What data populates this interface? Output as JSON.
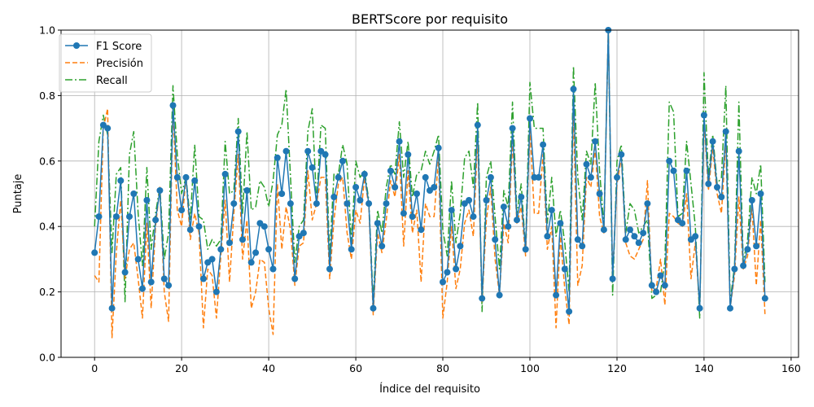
{
  "chart_data": {
    "type": "line",
    "title": "BERTScore por requisito",
    "xlabel": "Índice del requisito",
    "ylabel": "Puntaje",
    "xlim": [
      -7.7,
      161.7
    ],
    "ylim": [
      0.0,
      1.0
    ],
    "xticks": [
      0,
      20,
      40,
      60,
      80,
      100,
      120,
      140,
      160
    ],
    "yticks": [
      0.0,
      0.2,
      0.4,
      0.6,
      0.8,
      1.0
    ],
    "xtick_labels": [
      "0",
      "20",
      "40",
      "60",
      "80",
      "100",
      "120",
      "140",
      "160"
    ],
    "ytick_labels": [
      "0.0",
      "0.2",
      "0.4",
      "0.6",
      "0.8",
      "1.0"
    ],
    "grid": true,
    "legend_position": "top-left",
    "x": [
      0,
      1,
      2,
      3,
      4,
      5,
      6,
      7,
      8,
      9,
      10,
      11,
      12,
      13,
      14,
      15,
      16,
      17,
      18,
      19,
      20,
      21,
      22,
      23,
      24,
      25,
      26,
      27,
      28,
      29,
      30,
      31,
      32,
      33,
      34,
      35,
      36,
      37,
      38,
      39,
      40,
      41,
      42,
      43,
      44,
      45,
      46,
      47,
      48,
      49,
      50,
      51,
      52,
      53,
      54,
      55,
      56,
      57,
      58,
      59,
      60,
      61,
      62,
      63,
      64,
      65,
      66,
      67,
      68,
      69,
      70,
      71,
      72,
      73,
      74,
      75,
      76,
      77,
      78,
      79,
      80,
      81,
      82,
      83,
      84,
      85,
      86,
      87,
      88,
      89,
      90,
      91,
      92,
      93,
      94,
      95,
      96,
      97,
      98,
      99,
      100,
      101,
      102,
      103,
      104,
      105,
      106,
      107,
      108,
      109,
      110,
      111,
      112,
      113,
      114,
      115,
      116,
      117,
      118,
      119,
      120,
      121,
      122,
      123,
      124,
      125,
      126,
      127,
      128,
      129,
      130,
      131,
      132,
      133,
      134,
      135,
      136,
      137,
      138,
      139,
      140,
      141,
      142,
      143,
      144,
      145,
      146,
      147,
      148,
      149,
      150,
      151,
      152,
      153,
      154
    ],
    "series": [
      {
        "name": "F1 Score",
        "color": "#1f77b4",
        "style": "solid",
        "marker": "circle",
        "values": [
          0.32,
          0.43,
          0.71,
          0.7,
          0.15,
          0.43,
          0.54,
          0.26,
          0.43,
          0.5,
          0.3,
          0.21,
          0.48,
          0.23,
          0.42,
          0.51,
          0.24,
          0.22,
          0.77,
          0.55,
          0.45,
          0.55,
          0.39,
          0.54,
          0.4,
          0.24,
          0.29,
          0.3,
          0.2,
          0.33,
          0.56,
          0.35,
          0.47,
          0.69,
          0.36,
          0.51,
          0.29,
          0.32,
          0.41,
          0.4,
          0.33,
          0.27,
          0.61,
          0.5,
          0.63,
          0.47,
          0.24,
          0.37,
          0.38,
          0.63,
          0.58,
          0.47,
          0.63,
          0.62,
          0.27,
          0.49,
          0.55,
          0.6,
          0.47,
          0.33,
          0.52,
          0.48,
          0.56,
          0.47,
          0.15,
          0.41,
          0.34,
          0.47,
          0.57,
          0.52,
          0.66,
          0.44,
          0.62,
          0.43,
          0.5,
          0.39,
          0.55,
          0.51,
          0.52,
          0.64,
          0.23,
          0.26,
          0.45,
          0.27,
          0.34,
          0.47,
          0.48,
          0.43,
          0.71,
          0.18,
          0.48,
          0.55,
          0.36,
          0.19,
          0.46,
          0.4,
          0.7,
          0.42,
          0.49,
          0.33,
          0.73,
          0.55,
          0.55,
          0.65,
          0.37,
          0.45,
          0.19,
          0.41,
          0.27,
          0.14,
          0.82,
          0.36,
          0.34,
          0.59,
          0.55,
          0.66,
          0.5,
          0.39,
          1.0,
          0.24,
          0.55,
          0.62,
          0.36,
          0.39,
          0.37,
          0.35,
          0.38,
          0.47,
          0.22,
          0.2,
          0.25,
          0.22,
          0.6,
          0.57,
          0.42,
          0.41,
          0.57,
          0.36,
          0.37,
          0.15,
          0.74,
          0.53,
          0.66,
          0.52,
          0.49,
          0.69,
          0.15,
          0.27,
          0.63,
          0.28,
          0.33,
          0.48,
          0.34,
          0.5,
          0.18
        ]
      },
      {
        "name": "Precisión",
        "color": "#ff7f0e",
        "style": "dashed",
        "marker": "none",
        "values": [
          0.25,
          0.23,
          0.7,
          0.76,
          0.06,
          0.32,
          0.48,
          0.24,
          0.33,
          0.35,
          0.24,
          0.12,
          0.41,
          0.15,
          0.4,
          0.52,
          0.2,
          0.11,
          0.76,
          0.45,
          0.4,
          0.55,
          0.36,
          0.44,
          0.38,
          0.09,
          0.27,
          0.25,
          0.12,
          0.31,
          0.48,
          0.23,
          0.44,
          0.62,
          0.3,
          0.42,
          0.15,
          0.2,
          0.3,
          0.29,
          0.15,
          0.07,
          0.53,
          0.33,
          0.46,
          0.39,
          0.22,
          0.34,
          0.35,
          0.57,
          0.42,
          0.47,
          0.55,
          0.55,
          0.24,
          0.42,
          0.53,
          0.55,
          0.38,
          0.3,
          0.45,
          0.41,
          0.55,
          0.46,
          0.13,
          0.38,
          0.32,
          0.42,
          0.54,
          0.49,
          0.62,
          0.34,
          0.57,
          0.38,
          0.45,
          0.23,
          0.47,
          0.43,
          0.43,
          0.61,
          0.12,
          0.23,
          0.4,
          0.21,
          0.27,
          0.41,
          0.45,
          0.37,
          0.67,
          0.17,
          0.42,
          0.52,
          0.3,
          0.19,
          0.41,
          0.35,
          0.66,
          0.41,
          0.46,
          0.31,
          0.7,
          0.44,
          0.44,
          0.62,
          0.33,
          0.4,
          0.09,
          0.37,
          0.21,
          0.1,
          0.75,
          0.22,
          0.28,
          0.55,
          0.52,
          0.64,
          0.43,
          0.38,
          1.0,
          0.25,
          0.53,
          0.61,
          0.35,
          0.31,
          0.3,
          0.33,
          0.36,
          0.54,
          0.2,
          0.21,
          0.3,
          0.16,
          0.44,
          0.43,
          0.41,
          0.4,
          0.5,
          0.24,
          0.35,
          0.15,
          0.72,
          0.51,
          0.64,
          0.5,
          0.44,
          0.66,
          0.15,
          0.25,
          0.49,
          0.27,
          0.31,
          0.46,
          0.22,
          0.42,
          0.13
        ]
      },
      {
        "name": "Recall",
        "color": "#2ca02c",
        "style": "dashdot",
        "marker": "none",
        "values": [
          0.4,
          0.66,
          0.74,
          0.68,
          0.32,
          0.56,
          0.58,
          0.17,
          0.62,
          0.69,
          0.44,
          0.28,
          0.58,
          0.33,
          0.44,
          0.52,
          0.3,
          0.38,
          0.83,
          0.62,
          0.5,
          0.55,
          0.42,
          0.65,
          0.43,
          0.42,
          0.33,
          0.36,
          0.34,
          0.36,
          0.66,
          0.5,
          0.51,
          0.73,
          0.44,
          0.69,
          0.45,
          0.46,
          0.54,
          0.52,
          0.46,
          0.54,
          0.68,
          0.71,
          0.82,
          0.55,
          0.29,
          0.4,
          0.42,
          0.69,
          0.76,
          0.47,
          0.71,
          0.7,
          0.31,
          0.56,
          0.56,
          0.65,
          0.59,
          0.35,
          0.6,
          0.55,
          0.57,
          0.48,
          0.17,
          0.45,
          0.38,
          0.52,
          0.59,
          0.56,
          0.72,
          0.55,
          0.66,
          0.49,
          0.56,
          0.57,
          0.63,
          0.59,
          0.63,
          0.68,
          0.39,
          0.31,
          0.54,
          0.35,
          0.44,
          0.61,
          0.63,
          0.52,
          0.78,
          0.14,
          0.55,
          0.6,
          0.43,
          0.27,
          0.51,
          0.46,
          0.78,
          0.44,
          0.53,
          0.33,
          0.84,
          0.7,
          0.7,
          0.7,
          0.41,
          0.55,
          0.37,
          0.45,
          0.35,
          0.2,
          0.89,
          0.55,
          0.42,
          0.63,
          0.59,
          0.84,
          0.57,
          0.4,
          1.0,
          0.19,
          0.6,
          0.65,
          0.38,
          0.47,
          0.45,
          0.38,
          0.4,
          0.42,
          0.18,
          0.19,
          0.2,
          0.29,
          0.78,
          0.75,
          0.43,
          0.44,
          0.66,
          0.53,
          0.4,
          0.12,
          0.87,
          0.55,
          0.68,
          0.53,
          0.55,
          0.83,
          0.17,
          0.28,
          0.78,
          0.29,
          0.36,
          0.55,
          0.5,
          0.59,
          0.23
        ]
      }
    ]
  }
}
